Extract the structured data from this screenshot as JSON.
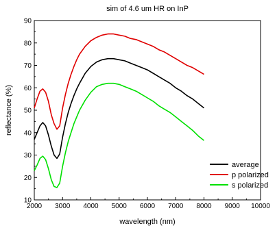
{
  "chart_data": {
    "type": "line",
    "title": "sim of 4.6 um HR on InP",
    "xlabel": "wavelength (nm)",
    "ylabel": "reflectance (%)",
    "xlim": [
      2000,
      10000
    ],
    "ylim": [
      10,
      90
    ],
    "x_ticks": [
      2000,
      3000,
      4000,
      5000,
      6000,
      7000,
      8000,
      9000,
      10000
    ],
    "y_ticks": [
      10,
      20,
      30,
      40,
      50,
      60,
      70,
      80,
      90
    ],
    "grid": false,
    "legend_position": "bottom-right",
    "x": [
      2000,
      2100,
      2200,
      2300,
      2400,
      2500,
      2600,
      2700,
      2800,
      2900,
      3000,
      3100,
      3200,
      3300,
      3400,
      3500,
      3600,
      3800,
      4000,
      4200,
      4400,
      4600,
      4800,
      5000,
      5200,
      5400,
      5600,
      5800,
      6000,
      6200,
      6400,
      6600,
      6800,
      7000,
      7200,
      7400,
      7600,
      7800,
      8000
    ],
    "series": [
      {
        "name": "average",
        "color": "#000000",
        "values": [
          37,
          40,
          43,
          44.5,
          43,
          39,
          34,
          30,
          28.5,
          30.5,
          38,
          44,
          49,
          53,
          56.5,
          59.5,
          62,
          66.5,
          69.5,
          71.5,
          72.5,
          73,
          73,
          72.5,
          72,
          71,
          70,
          69,
          68,
          66.5,
          65,
          63.5,
          62,
          60,
          58.5,
          56.5,
          55,
          53,
          51
        ]
      },
      {
        "name": "p polarized",
        "color": "#e00000",
        "values": [
          51,
          55,
          58.5,
          59.5,
          58,
          54,
          48,
          44,
          41.5,
          43,
          51,
          57,
          62,
          66,
          69.5,
          72.5,
          75,
          78.5,
          81,
          82.5,
          83.5,
          84,
          84,
          83.5,
          83,
          82,
          81.5,
          80.5,
          79.5,
          78.5,
          77,
          76,
          74.5,
          73,
          71.5,
          70,
          69,
          67.5,
          66
        ]
      },
      {
        "name": "s polarized",
        "color": "#00e000",
        "values": [
          23,
          25.5,
          28.5,
          29.5,
          28,
          24,
          19,
          16,
          15.5,
          17.5,
          25,
          31,
          36,
          40,
          44,
          47,
          50,
          54.5,
          58,
          60.5,
          61.5,
          62,
          62,
          61.5,
          60.5,
          59.5,
          58.5,
          57,
          55.5,
          54,
          52,
          50.5,
          49,
          47,
          45,
          43,
          41,
          38.5,
          36.5
        ]
      }
    ]
  }
}
